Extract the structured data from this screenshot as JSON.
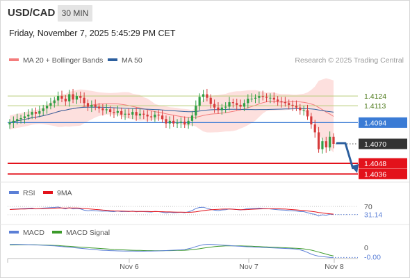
{
  "header": {
    "symbol": "USD/CAD",
    "timeframe": "30 MIN",
    "datetime": "Friday, November 7, 2025 5:45:29 PM CET"
  },
  "colors": {
    "ma20": "#f47c7c",
    "band_fill": "#fde0de",
    "ma50": "#2c5f9e",
    "pivot": "#3a7bd5",
    "support": "#e3121b",
    "resistance": "#b7cc78",
    "bull": "#2f9e44",
    "bear": "#d63a3a",
    "rsi": "#5b7fd6",
    "rsi_signal": "#e3121b",
    "macd": "#5b7fd6",
    "macd_signal": "#3c9a2a",
    "arrow": "#2c5f9e",
    "last_price_bg": "#333333"
  },
  "chart_data": [
    {
      "type": "candlestick",
      "title": "USD/CAD",
      "legend": [
        {
          "name": "MA 20 + Bollinger Bands",
          "color": "#f47c7c"
        },
        {
          "name": "MA 50",
          "color": "#2c5f9e"
        }
      ],
      "legend_position": "top-left",
      "watermark": "Research © 2025 Trading Central",
      "x_ticks": [
        "Nov 6",
        "Nov 7",
        "Nov 8"
      ],
      "ylim": [
        1.403,
        1.415
      ],
      "last_price": 1.407,
      "levels": [
        {
          "label": "1.4124",
          "value": 1.4124,
          "kind": "resistance"
        },
        {
          "label": "1.4113",
          "value": 1.4113,
          "kind": "resistance"
        },
        {
          "label": "1.4094",
          "value": 1.4094,
          "kind": "pivot"
        },
        {
          "label": "1.4070",
          "value": 1.407,
          "kind": "last"
        },
        {
          "label": "1.4048",
          "value": 1.4048,
          "kind": "support"
        },
        {
          "label": "1.4036",
          "value": 1.4036,
          "kind": "support"
        }
      ],
      "close": [
        1.4094,
        1.4096,
        1.4098,
        1.4099,
        1.4101,
        1.4103,
        1.4106,
        1.4104,
        1.4107,
        1.411,
        1.4113,
        1.4116,
        1.4119,
        1.4124,
        1.4121,
        1.4118,
        1.4126,
        1.412,
        1.4124,
        1.4122,
        1.4116,
        1.4112,
        1.4114,
        1.4112,
        1.411,
        1.4108,
        1.4109,
        1.4106,
        1.4105,
        1.4107,
        1.4103,
        1.4104,
        1.4103,
        1.4106,
        1.4102,
        1.4104,
        1.4103,
        1.4101,
        1.41,
        1.4103,
        1.4102,
        1.4098,
        1.4093,
        1.4096,
        1.4093,
        1.4094,
        1.4095,
        1.4092,
        1.4096,
        1.4102,
        1.4113,
        1.4123,
        1.4126,
        1.4122,
        1.4115,
        1.4111,
        1.4108,
        1.4111,
        1.4112,
        1.4117,
        1.4116,
        1.4114,
        1.4112,
        1.4116,
        1.4121,
        1.4121,
        1.4122,
        1.4124,
        1.4123,
        1.4122,
        1.4122,
        1.412,
        1.4118,
        1.4117,
        1.4116,
        1.4114,
        1.4113,
        1.4111,
        1.4108,
        1.4108,
        1.4101,
        1.4092,
        1.4083,
        1.4064,
        1.4073,
        1.4066,
        1.4078,
        1.407
      ]
    },
    {
      "type": "line",
      "title": "RSI",
      "legend": [
        {
          "name": "RSI",
          "color": "#5b7fd6"
        },
        {
          "name": "9MA",
          "color": "#e3121b"
        }
      ],
      "ylim": [
        0,
        100
      ],
      "reference_levels": [
        70,
        30
      ],
      "last_value": 31.14,
      "series": [
        {
          "name": "RSI",
          "values": [
            55,
            57,
            58,
            59,
            60,
            61,
            62,
            58,
            60,
            62,
            63,
            64,
            65,
            67,
            62,
            58,
            64,
            58,
            60,
            58,
            52,
            49,
            51,
            49,
            48,
            47,
            48,
            46,
            45,
            48,
            45,
            46,
            45,
            48,
            44,
            46,
            45,
            44,
            43,
            46,
            45,
            42,
            39,
            42,
            40,
            41,
            42,
            40,
            44,
            50,
            60,
            65,
            66,
            61,
            56,
            52,
            50,
            53,
            54,
            58,
            57,
            55,
            53,
            56,
            60,
            60,
            61,
            62,
            60,
            59,
            58,
            56,
            54,
            53,
            52,
            50,
            49,
            48,
            45,
            45,
            40,
            35,
            32,
            24,
            30,
            27,
            33,
            31.14
          ]
        }
      ]
    },
    {
      "type": "line",
      "title": "MACD",
      "legend": [
        {
          "name": "MACD",
          "color": "#5b7fd6"
        },
        {
          "name": "MACD Signal",
          "color": "#3c9a2a"
        }
      ],
      "ylim": [
        -0.0013,
        0.0009
      ],
      "reference_levels": [
        0
      ],
      "zero_label": "0",
      "last_value_label": "-0.00",
      "series": [
        {
          "name": "MACD",
          "values": [
            0.00035,
            0.00036,
            0.00036,
            0.00035,
            0.00034,
            0.00033,
            0.00032,
            0.0003,
            0.00028,
            0.00026,
            0.00024,
            0.00021,
            0.00018,
            0.00014,
            0.0001,
            6e-05,
            2e-05,
            -2e-05,
            -6e-05,
            -0.0001,
            -0.00014,
            -0.00018,
            -0.00022,
            -0.00026,
            -0.0003,
            -0.00033,
            -0.00035,
            -0.00037,
            -0.00039,
            -0.0004,
            -0.00041,
            -0.00042,
            -0.00043,
            -0.00043,
            -0.00044,
            -0.00044,
            -0.00044,
            -0.00043,
            -0.00042,
            -0.00041,
            -0.0004,
            -0.00038,
            -0.00036,
            -0.00034,
            -0.00032,
            -0.0003,
            -0.00028,
            -0.00025,
            -0.00015,
            -5e-05,
            0.0001,
            0.00022,
            0.00032,
            0.00036,
            0.00036,
            0.00034,
            0.00031,
            0.00028,
            0.00025,
            0.00022,
            0.00019,
            0.00016,
            0.00013,
            0.0001,
            8e-05,
            6e-05,
            4e-05,
            2e-05,
            0.0,
            -2e-05,
            -4e-05,
            -6e-05,
            -8e-05,
            -0.0001,
            -0.00012,
            -0.00014,
            -0.00016,
            -0.0002,
            -0.00028,
            -0.0004,
            -0.00058,
            -0.00078,
            -0.00092,
            -0.00102,
            -0.00108,
            -0.00112,
            -0.00115,
            -0.00117
          ]
        },
        {
          "name": "MACD Signal",
          "values": [
            0.0003,
            0.00031,
            0.00032,
            0.00032,
            0.00032,
            0.00032,
            0.00032,
            0.00031,
            0.0003,
            0.00029,
            0.00028,
            0.00026,
            0.00024,
            0.00022,
            0.00019,
            0.00016,
            0.00013,
            0.0001,
            7e-05,
            4e-05,
            1e-05,
            -2e-05,
            -5e-05,
            -8e-05,
            -0.00011,
            -0.00014,
            -0.00017,
            -0.0002,
            -0.00023,
            -0.00025,
            -0.00027,
            -0.00029,
            -0.00031,
            -0.00033,
            -0.00034,
            -0.00035,
            -0.00036,
            -0.00037,
            -0.00037,
            -0.00038,
            -0.00038,
            -0.00038,
            -0.00037,
            -0.00037,
            -0.00036,
            -0.00035,
            -0.00034,
            -0.00033,
            -0.0003,
            -0.00026,
            -0.00021,
            -0.00015,
            -8e-05,
            -2e-05,
            4e-05,
            9e-05,
            0.00013,
            0.00016,
            0.00018,
            0.00019,
            0.00019,
            0.00019,
            0.00018,
            0.00017,
            0.00016,
            0.00014,
            0.00012,
            0.0001,
            8e-05,
            6e-05,
            4e-05,
            2e-05,
            0.0,
            -2e-05,
            -4e-05,
            -6e-05,
            -8e-05,
            -0.0001,
            -0.00013,
            -0.00017,
            -0.00023,
            -0.00031,
            -0.00042,
            -0.00054,
            -0.00066,
            -0.00078,
            -0.0009,
            -0.001
          ]
        }
      ]
    }
  ]
}
